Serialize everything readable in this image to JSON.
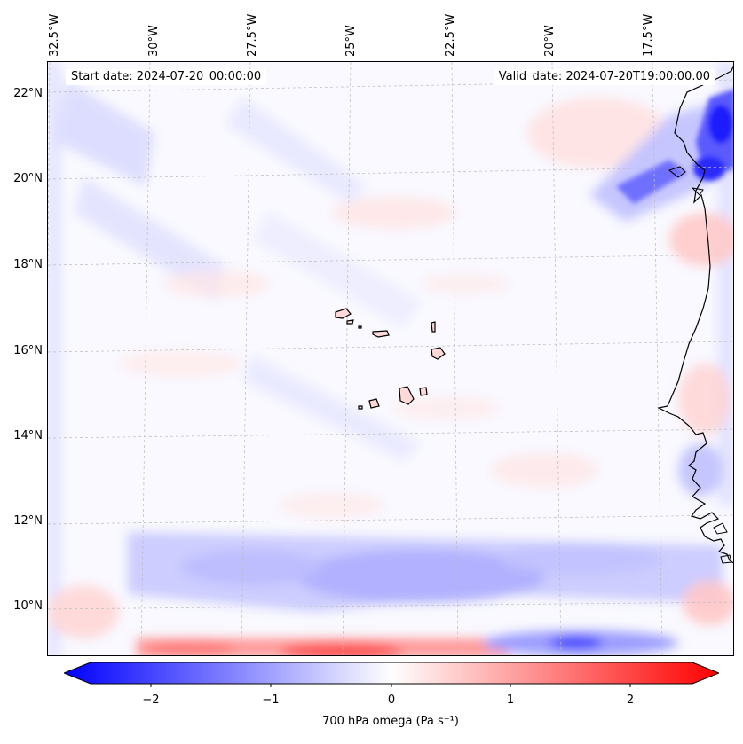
{
  "header": {
    "start_date": "Start date: 2024-07-20_00:00:00",
    "valid_date": "Valid_date: 2024-07-20T19:00:00.00"
  },
  "axes": {
    "longitude_labels": [
      "32.5°W",
      "30°W",
      "27.5°W",
      "25°W",
      "22.5°W",
      "20°W",
      "17.5°W"
    ],
    "latitude_labels": [
      "22°N",
      "20°N",
      "18°N",
      "16°N",
      "14°N",
      "12°N",
      "10°N"
    ]
  },
  "colorbar": {
    "tick_labels": [
      "−2",
      "−1",
      "0",
      "1",
      "2"
    ],
    "tick_values": [
      -2,
      -1,
      0,
      1,
      2
    ],
    "range": [
      -2.5,
      2.5
    ],
    "title": "700 hPa omega (Pa s⁻¹)",
    "colormap": "bwr",
    "color_low": "#0000ff",
    "color_mid": "#ffffff",
    "color_high": "#ff0000"
  },
  "map": {
    "variable": "700 hPa omega",
    "extent_lon": [
      -32.5,
      -15.5
    ],
    "extent_lat": [
      9,
      23
    ],
    "features": [
      "Cape Verde islands",
      "West African coastline"
    ],
    "colors": {
      "coast": "#000000",
      "grid": "#bbbbbb"
    }
  }
}
